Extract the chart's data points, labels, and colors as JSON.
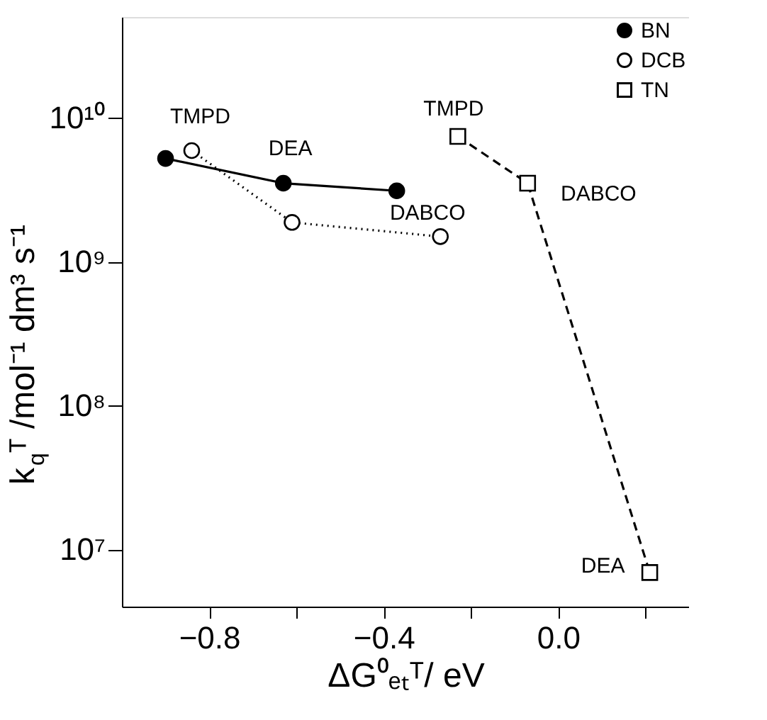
{
  "chart_data": {
    "type": "line",
    "xlabel": "ΔG⁰ₑₜᵀ/ eV",
    "ylabel": "k$_{q}$ᵀ /mol⁻¹ dm³ s⁻¹",
    "log": "y",
    "grid": false,
    "legend": "top right",
    "xlim": [
      -1.0,
      0.3
    ],
    "ylim": [
      4000000,
      50000000000
    ],
    "xticks": [
      {
        "value": -0.8,
        "label": "−0.8"
      },
      {
        "value": -0.6,
        "label": null
      },
      {
        "value": -0.4,
        "label": "−0.4"
      },
      {
        "value": -0.2,
        "label": null
      },
      {
        "value": 0,
        "label": "0.0"
      },
      {
        "value": 0.2,
        "label": null
      }
    ],
    "yticks": [
      {
        "value": 10000000,
        "label": "10⁷"
      },
      {
        "value": 100000000,
        "label": "10⁸"
      },
      {
        "value": 1000000000,
        "label": "10⁹"
      },
      {
        "value": 10000000000,
        "label": "10¹⁰"
      }
    ],
    "series": [
      {
        "name": "BN",
        "color": "#000000",
        "marker": "circle",
        "line_style": "solid",
        "x": [
          -0.9,
          -0.63,
          -0.37
        ],
        "values": [
          5200000000,
          3500000000,
          3100000000
        ]
      },
      {
        "name": "DCB",
        "color": "#000000",
        "marker": "circle",
        "line_style": "dotted",
        "x": [
          -0.84,
          -0.61,
          -0.27
        ],
        "values": [
          5900000000,
          1870000000,
          1490000000
        ]
      },
      {
        "name": "TN",
        "color": "#000000",
        "marker": "square",
        "line_style": "dashed",
        "x": [
          -0.23,
          -0.07,
          0.21
        ],
        "values": [
          7400000000,
          3500000000,
          6900000
        ]
      }
    ],
    "annotations": [
      {
        "text": "TMPD",
        "x": -0.84,
        "y": 5900000000
      },
      {
        "text": "DEA",
        "x": -0.63,
        "y": 3500000000
      },
      {
        "text": "DABCO",
        "x": -0.27,
        "y": 1490000000
      },
      {
        "text": "TMPD",
        "x": -0.23,
        "y": 7400000000
      },
      {
        "text": "DABCO",
        "x": -0.07,
        "y": 3500000000
      },
      {
        "text": "DEA",
        "x": 0.21,
        "y": 6900000
      }
    ]
  }
}
